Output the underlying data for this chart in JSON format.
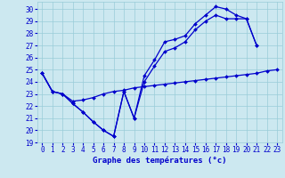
{
  "bg_color": "#cce8f0",
  "grid_color": "#99ccd8",
  "line_color": "#0000cc",
  "xlabel": "Graphe des températures (°c)",
  "xlim": [
    -0.5,
    23.5
  ],
  "ylim": [
    19,
    30.6
  ],
  "ytick_min": 19,
  "ytick_max": 30,
  "curve1_x": [
    0,
    1,
    2,
    3,
    4,
    5,
    6,
    7,
    8,
    9,
    10,
    11,
    12,
    13,
    14,
    15,
    16,
    17,
    18,
    19,
    20,
    21
  ],
  "curve1_y": [
    24.7,
    23.2,
    23.0,
    22.2,
    21.5,
    20.7,
    20.0,
    19.5,
    23.2,
    21.0,
    24.5,
    25.8,
    27.3,
    27.5,
    27.8,
    28.8,
    29.5,
    30.2,
    30.0,
    29.5,
    29.2,
    27.0
  ],
  "curve2_x": [
    0,
    1,
    2,
    3,
    4,
    5,
    6,
    7,
    8,
    9,
    10,
    11,
    12,
    13,
    14,
    15,
    16,
    17,
    18,
    19,
    20,
    21
  ],
  "curve2_y": [
    24.7,
    23.2,
    23.0,
    22.2,
    21.5,
    20.7,
    20.0,
    19.5,
    23.2,
    21.0,
    24.0,
    25.3,
    26.5,
    26.8,
    27.3,
    28.3,
    29.0,
    29.5,
    29.2,
    29.2,
    29.2,
    27.0
  ],
  "curve3_x": [
    0,
    1,
    2,
    3,
    4,
    5,
    6,
    7,
    8,
    9,
    10,
    11,
    12,
    13,
    14,
    15,
    16,
    17,
    18,
    19,
    20,
    21,
    22,
    23
  ],
  "curve3_y": [
    24.7,
    23.2,
    23.0,
    22.4,
    22.5,
    22.7,
    23.0,
    23.2,
    23.3,
    23.5,
    23.6,
    23.7,
    23.8,
    23.9,
    24.0,
    24.1,
    24.2,
    24.3,
    24.4,
    24.5,
    24.6,
    24.7,
    24.9,
    25.0
  ],
  "xlabel_color": "#0000cc",
  "xlabel_fontsize": 6.5,
  "tick_fontsize": 5.5,
  "tick_color": "#0000cc",
  "linewidth": 0.9,
  "markersize": 2.0
}
